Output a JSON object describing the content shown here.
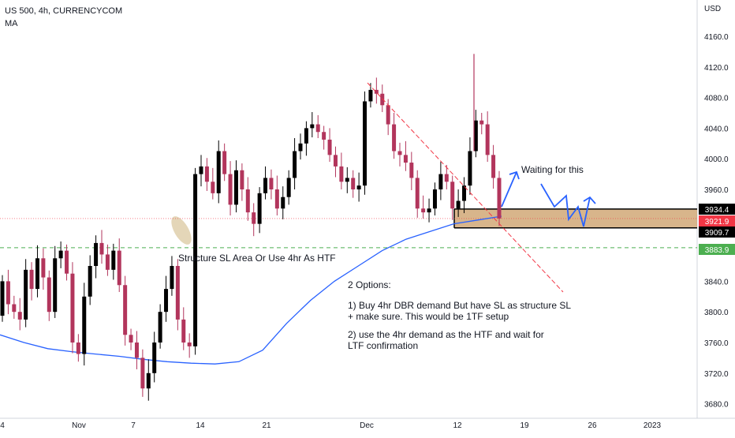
{
  "header": {
    "symbol_line": "US 500, 4h, CURRENCYCOM",
    "indicator_label": "MA"
  },
  "price_axis": {
    "currency": "USD",
    "tick_labels": [
      "4160.0",
      "4120.0",
      "4080.0",
      "4040.0",
      "4000.0",
      "3960.0",
      "3840.0",
      "3800.0",
      "3760.0",
      "3720.0",
      "3680.0"
    ]
  },
  "price_tags": [
    {
      "value": "3934.4",
      "bg": "#000000",
      "fg": "#ffffff"
    },
    {
      "value": "3921.9",
      "bg": "#f23645",
      "fg": "#ffffff"
    },
    {
      "value": "3909.7",
      "bg": "#000000",
      "fg": "#ffffff"
    },
    {
      "value": "3883.9",
      "bg": "#4caf50",
      "fg": "#ffffff"
    }
  ],
  "time_axis": {
    "labels": [
      "4",
      "Nov",
      "7",
      "14",
      "21",
      "Dec",
      "12",
      "19",
      "26",
      "2023"
    ]
  },
  "annotations": {
    "waiting": "Waiting for this",
    "structure": "Structure SL Area Or Use 4hr As HTF",
    "options_title": "2 Options:",
    "option1_line1": "1) Buy 4hr DBR demand But have SL as structure SL",
    "option1_line2": "+ make sure. This would be 1TF setup",
    "option2_line1": "2) use the 4hr demand as the HTF and wait for",
    "option2_line2": "LTF confirmation"
  },
  "colors": {
    "up_candle": "#000000",
    "down_candle": "#b2355c",
    "ma_line": "#2962ff",
    "trend_line": "#f23645",
    "zone_fill": "#c8965a",
    "green_dashed": "#4caf50",
    "projection": "#2962ff"
  },
  "chart_data": {
    "type": "candlestick",
    "title": "US 500, 4h, CURRENCYCOM",
    "y_unit": "USD",
    "ylim": [
      3660,
      4190
    ],
    "x_tick_labels": [
      "4",
      "Nov",
      "7",
      "14",
      "21",
      "Dec",
      "12",
      "19",
      "26",
      "2023"
    ],
    "price_path_close": [
      3840,
      3810,
      3800,
      3790,
      3855,
      3830,
      3870,
      3845,
      3800,
      3870,
      3880,
      3850,
      3760,
      3745,
      3820,
      3860,
      3890,
      3875,
      3855,
      3880,
      3835,
      3770,
      3760,
      3740,
      3700,
      3720,
      3760,
      3800,
      3830,
      3860,
      3790,
      3760,
      3755,
      3980,
      3990,
      3970,
      3955,
      4010,
      3980,
      3940,
      3985,
      3960,
      3930,
      3915,
      3955,
      3975,
      3960,
      3935,
      3950,
      3975,
      4010,
      4020,
      4040,
      4045,
      4035,
      4025,
      4005,
      3990,
      3970,
      3975,
      3960,
      3965,
      4075,
      4090,
      4085,
      4070,
      4045,
      4010,
      4005,
      3995,
      3975,
      3935,
      3930,
      3935,
      3960,
      3980,
      3970,
      3935,
      3945,
      3965,
      4010,
      4050,
      4045,
      4005,
      3975,
      3922
    ],
    "ma_series": {
      "name": "MA",
      "values": [
        3770,
        3760,
        3752,
        3748,
        3745,
        3742,
        3738,
        3735,
        3733,
        3732,
        3735,
        3750,
        3785,
        3815,
        3840,
        3860,
        3880,
        3895,
        3905,
        3915,
        3920,
        3925
      ]
    },
    "horizontal_levels": [
      {
        "label": "3934.4",
        "value": 3934.4
      },
      {
        "label": "3921.9",
        "value": 3921.9
      },
      {
        "label": "3909.7",
        "value": 3909.7
      },
      {
        "label": "3883.9",
        "value": 3883.9
      }
    ],
    "demand_zone": {
      "top": 3934.4,
      "bottom": 3909.7
    },
    "intraday_high": 4137,
    "grid": false,
    "legend": "top-left"
  }
}
